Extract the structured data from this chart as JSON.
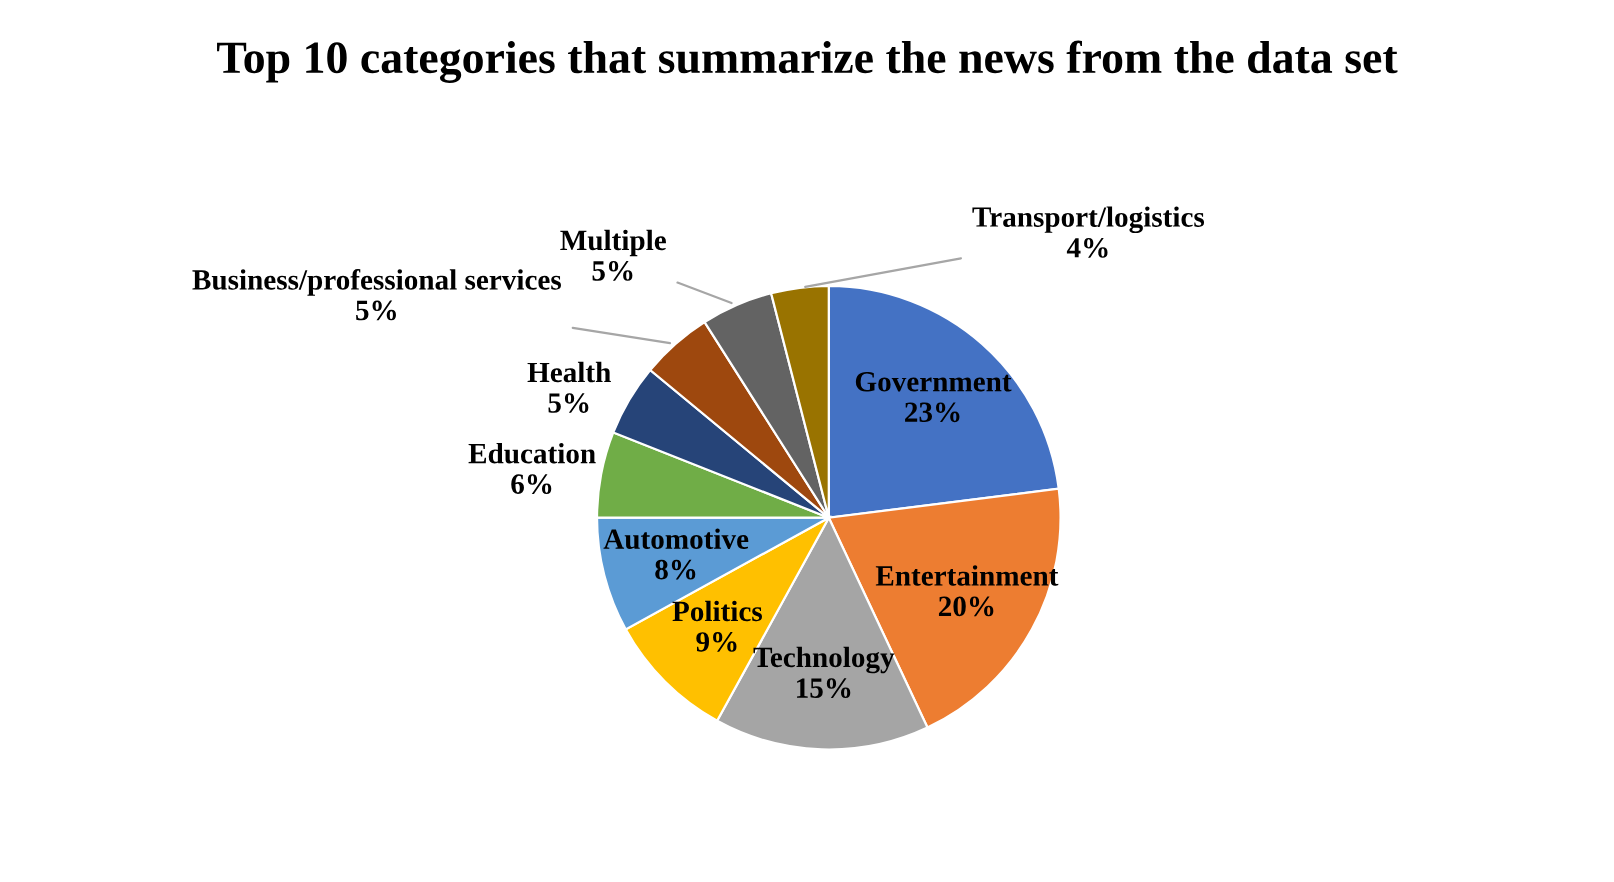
{
  "chart_data": {
    "type": "pie",
    "title": "Top 10 categories that summarize the news from the data set",
    "categories": [
      "Government",
      "Entertainment",
      "Technology",
      "Politics",
      "Automotive",
      "Education",
      "Health",
      "Business/professional services",
      "Multiple",
      "Transport/logistics"
    ],
    "values": [
      23,
      20,
      15,
      9,
      8,
      6,
      5,
      5,
      5,
      4
    ],
    "value_labels": [
      "23%",
      "20%",
      "15%",
      "9%",
      "8%",
      "6%",
      "5%",
      "5%",
      "5%",
      "4%"
    ],
    "colors": [
      "#4472c4",
      "#ed7d31",
      "#a5a5a5",
      "#ffc000",
      "#5b9bd5",
      "#70ad47",
      "#264478",
      "#9e480e",
      "#636363",
      "#997300"
    ]
  }
}
